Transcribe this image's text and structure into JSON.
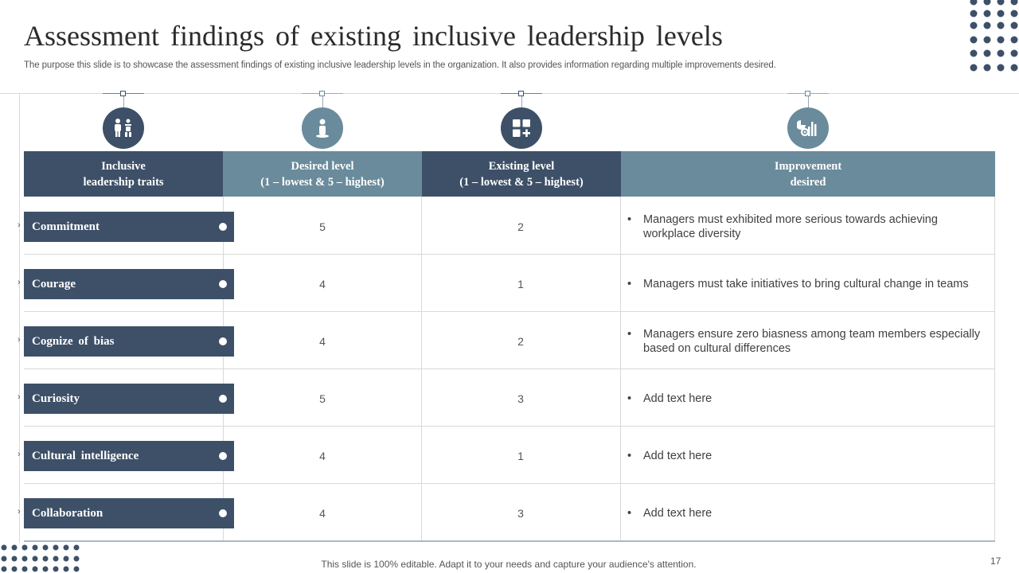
{
  "title": "Assessment findings of existing inclusive leadership levels",
  "subtitle": "The purpose this slide is to showcase the assessment findings of existing inclusive leadership levels in the organization. It also provides information regarding multiple improvements desired.",
  "icons": [
    "leadership-people-icon",
    "person-podium-icon",
    "grid-plus-icon",
    "chart-gear-icon"
  ],
  "colors": {
    "dark": "#3d5068",
    "light": "#6a8b9b"
  },
  "headers": {
    "traits": {
      "line1": "Inclusive",
      "line2": "leadership traits"
    },
    "desired": {
      "line1": "Desired level",
      "line2": "(1 – lowest & 5 – highest)"
    },
    "existing": {
      "line1": "Existing level",
      "line2": "(1 – lowest & 5 – highest)"
    },
    "improvement": {
      "line1": "Improvement",
      "line2": "desired"
    }
  },
  "rows": [
    {
      "trait": "Commitment",
      "desired": "5",
      "existing": "2",
      "improvement": "Managers must exhibited more serious towards achieving workplace diversity"
    },
    {
      "trait": "Courage",
      "desired": "4",
      "existing": "1",
      "improvement": "Managers must take initiatives to bring cultural change in teams"
    },
    {
      "trait": "Cognize of bias",
      "desired": "4",
      "existing": "2",
      "improvement": "Managers ensure zero biasness among team members especially based on cultural differences"
    },
    {
      "trait": "Curiosity",
      "desired": "5",
      "existing": "3",
      "improvement": "Add text here"
    },
    {
      "trait": "Cultural intelligence",
      "desired": "4",
      "existing": "1",
      "improvement": "Add text here"
    },
    {
      "trait": "Collaboration",
      "desired": "4",
      "existing": "3",
      "improvement": "Add text here"
    }
  ],
  "footer": "This slide is 100% editable. Adapt it to your needs and capture your audience's attention.",
  "page_number": "17"
}
